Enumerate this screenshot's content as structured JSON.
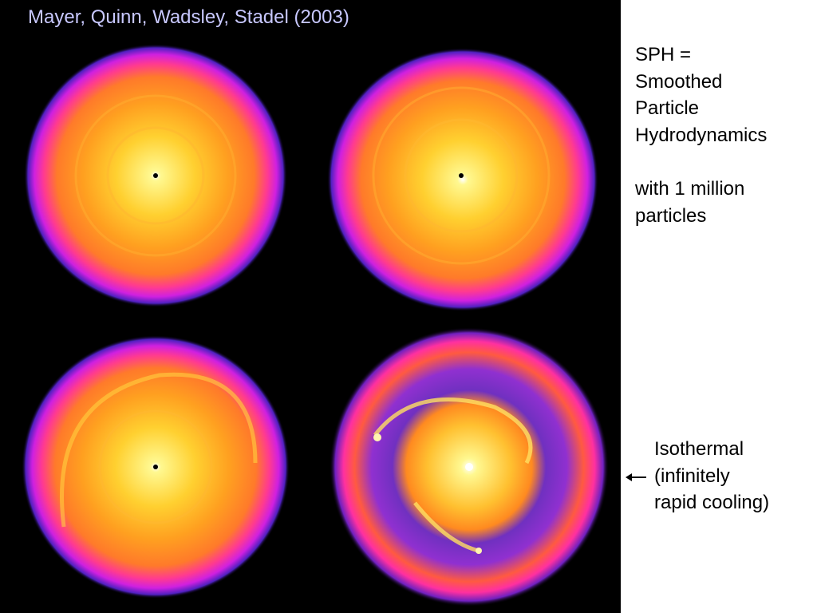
{
  "title": "Mayer, Quinn, Wadsley, Stadel (2003)",
  "sidebar": {
    "lines": [
      "SPH =",
      "Smoothed",
      "Particle",
      "Hydrodynamics",
      "with 1 million",
      "particles"
    ]
  },
  "annotation": {
    "lines": [
      "Isothermal",
      "(infinitely",
      "rapid cooling)"
    ]
  }
}
